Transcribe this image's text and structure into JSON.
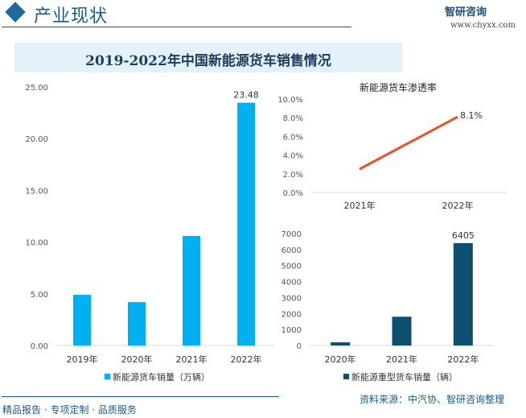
{
  "header": {
    "section_title": "产业现状",
    "logo_text": "智研咨询",
    "url": "www.chyxx.com"
  },
  "main_title": "2019-2022年中国新能源货车销售情况",
  "footer": {
    "left": "精品报告 · 专项定制 · 品质服务",
    "source": "资料来源：中汽协、智研咨询整理"
  },
  "colors": {
    "light_bar": "#00b0f0",
    "dark_bar": "#0c4f6e",
    "line": "#e8522a",
    "accent": "#1a5a86"
  },
  "chart_data": [
    {
      "type": "bar",
      "categories": [
        "2019年",
        "2020年",
        "2021年",
        "2022年"
      ],
      "series": [
        {
          "name": "新能源货车销量（万辆）",
          "values": [
            4.9,
            4.2,
            10.6,
            23.48
          ]
        }
      ],
      "ylim": [
        0,
        25
      ],
      "yticks": [
        "0.00",
        "5.00",
        "10.00",
        "15.00",
        "20.00",
        "25.00"
      ],
      "data_labels": {
        "3": "23.48"
      },
      "legend": "bottom"
    },
    {
      "type": "line",
      "title": "新能源货车渗透率",
      "categories": [
        "2021年",
        "2022年"
      ],
      "values": [
        2.5,
        8.1
      ],
      "ylim": [
        0,
        10
      ],
      "yticks": [
        "0.0%",
        "2.0%",
        "4.0%",
        "6.0%",
        "8.0%",
        "10.0%"
      ],
      "data_labels": {
        "1": "8.1%"
      }
    },
    {
      "type": "bar",
      "categories": [
        "2020年",
        "2021年",
        "2022年"
      ],
      "series": [
        {
          "name": "新能源重型货车销量（辆）",
          "values": [
            200,
            1800,
            6405
          ]
        }
      ],
      "ylim": [
        0,
        7000
      ],
      "yticks": [
        "0",
        "1000",
        "2000",
        "3000",
        "4000",
        "5000",
        "6000",
        "7000"
      ],
      "data_labels": {
        "2": "6405"
      },
      "legend": "bottom"
    }
  ]
}
